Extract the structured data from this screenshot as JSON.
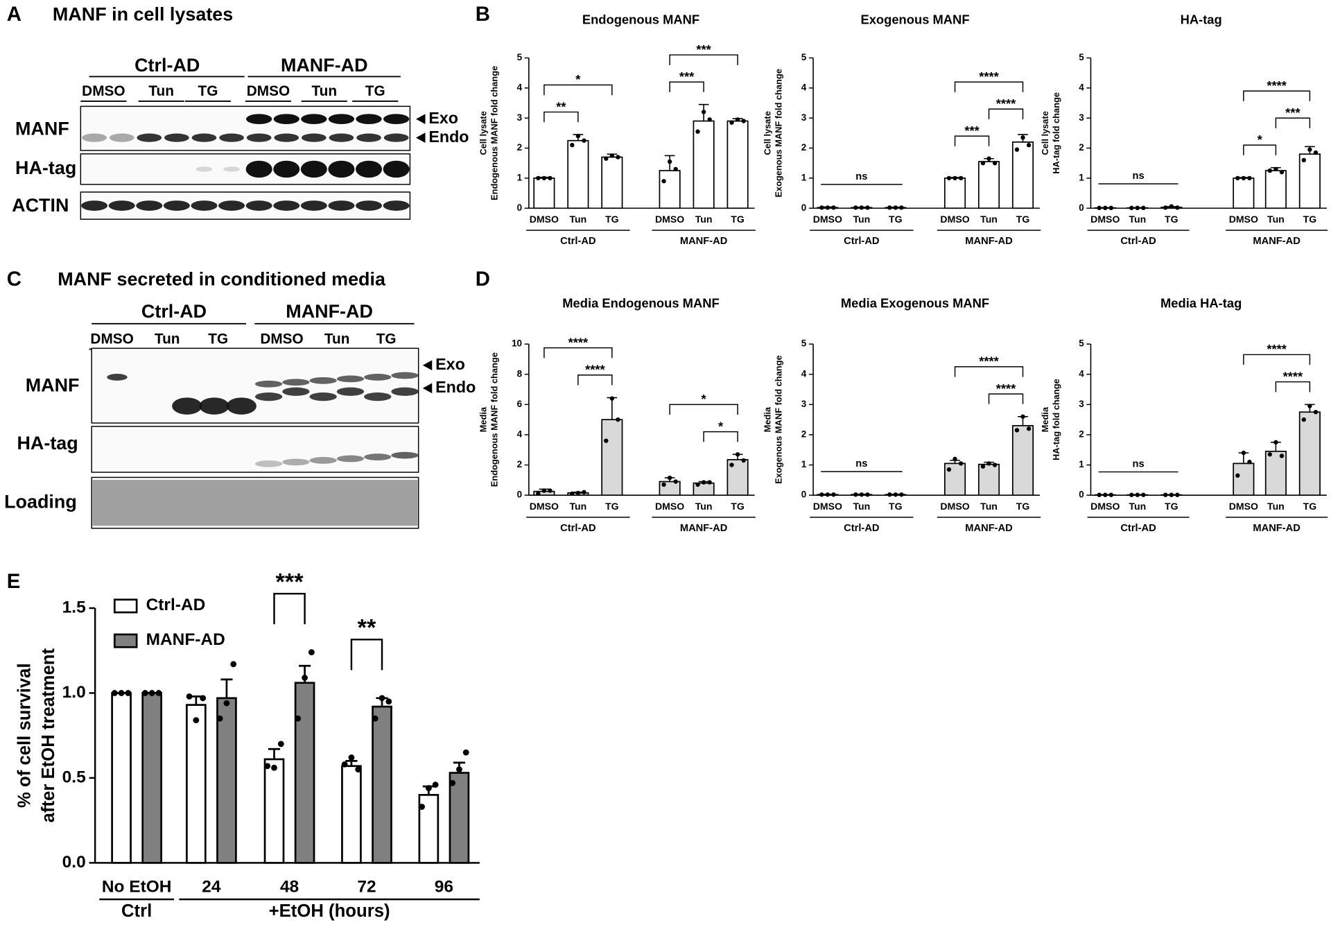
{
  "blots": [
    {
      "panel": "A",
      "title": "MANF in cell lysates",
      "groups": [
        "Ctrl-AD",
        "MANF-AD"
      ],
      "lanes": [
        "DMSO",
        "Tun",
        "TG",
        "DMSO",
        "Tun",
        "TG"
      ],
      "rows": [
        "MANF",
        "HA-tag",
        "ACTIN"
      ],
      "bands": [
        "Exo",
        "Endo"
      ]
    },
    {
      "panel": "C",
      "title": "MANF secreted in conditioned media",
      "groups": [
        "Ctrl-AD",
        "MANF-AD"
      ],
      "lanes": [
        "DMSO",
        "Tun",
        "TG",
        "DMSO",
        "Tun",
        "TG"
      ],
      "rows": [
        "MANF",
        "HA-tag",
        "Loading"
      ],
      "bands": [
        "Exo",
        "Endo"
      ]
    }
  ],
  "chart_panels": [
    "B",
    "D",
    "E"
  ],
  "chart_data": [
    {
      "type": "bar",
      "title": "Endogenous MANF",
      "ylabel": [
        "Cell lysate",
        "Endogenous MANF fold change"
      ],
      "categories": [
        "DMSO",
        "Tun",
        "TG",
        "DMSO",
        "Tun",
        "TG"
      ],
      "groups": [
        "Ctrl-AD",
        "MANF-AD"
      ],
      "values": [
        1.0,
        2.25,
        1.7,
        1.25,
        2.9,
        2.9
      ],
      "errors": [
        0.03,
        0.2,
        0.1,
        0.5,
        0.55,
        0.08
      ],
      "points": [
        [
          1,
          1,
          1
        ],
        [
          2.1,
          2.4,
          2.25
        ],
        [
          1.65,
          1.75,
          1.7
        ],
        [
          0.9,
          1.55,
          1.3
        ],
        [
          2.55,
          3.2,
          2.95
        ],
        [
          2.85,
          2.95,
          2.9
        ]
      ],
      "color": "#ffffff",
      "ylim": [
        0,
        5
      ],
      "yticks": [
        0,
        1,
        2,
        3,
        4,
        5
      ],
      "significance": [
        {
          "from": 0,
          "to": 1,
          "label": "**"
        },
        {
          "from": 0,
          "to": 2,
          "label": "*"
        },
        {
          "from": 3,
          "to": 4,
          "label": "***"
        },
        {
          "from": 3,
          "to": 5,
          "label": "***"
        }
      ]
    },
    {
      "type": "bar",
      "title": "Exogenous MANF",
      "ylabel": [
        "Cell lysate",
        "Exogenous MANF fold change"
      ],
      "categories": [
        "DMSO",
        "Tun",
        "TG",
        "DMSO",
        "Tun",
        "TG"
      ],
      "groups": [
        "Ctrl-AD",
        "MANF-AD"
      ],
      "values": [
        0.02,
        0.02,
        0.02,
        1.0,
        1.55,
        2.2
      ],
      "errors": [
        0.02,
        0.01,
        0.01,
        0.02,
        0.1,
        0.25
      ],
      "points": [
        [
          0.02,
          0.02,
          0.02
        ],
        [
          0.02,
          0.02,
          0.02
        ],
        [
          0.02,
          0.02,
          0.02
        ],
        [
          1,
          1,
          1
        ],
        [
          1.5,
          1.65,
          1.5
        ],
        [
          1.95,
          2.35,
          2.1
        ]
      ],
      "color": "#ffffff",
      "ylim": [
        0,
        5
      ],
      "yticks": [
        0,
        1,
        2,
        3,
        4,
        5
      ],
      "significance": [
        {
          "from": 0,
          "to": 2,
          "label": "ns"
        },
        {
          "from": 3,
          "to": 4,
          "label": "***"
        },
        {
          "from": 4,
          "to": 5,
          "label": "****"
        },
        {
          "from": 3,
          "to": 5,
          "label": "****"
        }
      ]
    },
    {
      "type": "bar",
      "title": "HA-tag",
      "ylabel": [
        "Cell lysate",
        "HA-tag fold change"
      ],
      "categories": [
        "DMSO",
        "Tun",
        "TG",
        "DMSO",
        "Tun",
        "TG"
      ],
      "groups": [
        "Ctrl-AD",
        "MANF-AD"
      ],
      "values": [
        0.01,
        0.01,
        0.03,
        1.0,
        1.25,
        1.8
      ],
      "errors": [
        0.01,
        0.01,
        0.02,
        0.02,
        0.1,
        0.25
      ],
      "points": [
        [
          0.01,
          0.01,
          0.01
        ],
        [
          0.01,
          0.01,
          0.01
        ],
        [
          0.02,
          0.06,
          0.02
        ],
        [
          1,
          1,
          1
        ],
        [
          1.25,
          1.3,
          1.2
        ],
        [
          1.6,
          1.95,
          1.85
        ]
      ],
      "color": "#ffffff",
      "ylim": [
        0,
        5
      ],
      "yticks": [
        0,
        1,
        2,
        3,
        4,
        5
      ],
      "significance": [
        {
          "from": 0,
          "to": 2,
          "label": "ns"
        },
        {
          "from": 3,
          "to": 4,
          "label": "*"
        },
        {
          "from": 4,
          "to": 5,
          "label": "***"
        },
        {
          "from": 3,
          "to": 5,
          "label": "****"
        }
      ]
    },
    {
      "type": "bar",
      "title": "Media Endogenous MANF",
      "ylabel": [
        "Media",
        "Endogenous MANF fold change"
      ],
      "categories": [
        "DMSO",
        "Tun",
        "TG",
        "DMSO",
        "Tun",
        "TG"
      ],
      "groups": [
        "Ctrl-AD",
        "MANF-AD"
      ],
      "values": [
        0.25,
        0.15,
        5.0,
        0.9,
        0.8,
        2.35
      ],
      "errors": [
        0.15,
        0.05,
        1.45,
        0.25,
        0.1,
        0.35
      ],
      "points": [
        [
          0.1,
          0.3,
          0.3
        ],
        [
          0.1,
          0.15,
          0.2
        ],
        [
          3.6,
          6.4,
          5.0
        ],
        [
          0.7,
          1.15,
          0.9
        ],
        [
          0.7,
          0.85,
          0.85
        ],
        [
          2.0,
          2.7,
          2.3
        ]
      ],
      "color": "#d9d9d9",
      "ylim": [
        0,
        10
      ],
      "yticks": [
        0,
        2,
        4,
        6,
        8,
        10
      ],
      "significance": [
        {
          "from": 1,
          "to": 2,
          "label": "****"
        },
        {
          "from": 0,
          "to": 2,
          "label": "****"
        },
        {
          "from": 4,
          "to": 5,
          "label": "*"
        },
        {
          "from": 3,
          "to": 5,
          "label": "*"
        }
      ]
    },
    {
      "type": "bar",
      "title": "Media Exogenous MANF",
      "ylabel": [
        "Media",
        "Exogenous MANF fold change"
      ],
      "categories": [
        "DMSO",
        "Tun",
        "TG",
        "DMSO",
        "Tun",
        "TG"
      ],
      "groups": [
        "Ctrl-AD",
        "MANF-AD"
      ],
      "values": [
        0.02,
        0.02,
        0.02,
        1.05,
        1.02,
        2.3
      ],
      "errors": [
        0.01,
        0.01,
        0.01,
        0.1,
        0.07,
        0.3
      ],
      "points": [
        [
          0.02,
          0.02,
          0.02
        ],
        [
          0.02,
          0.02,
          0.02
        ],
        [
          0.02,
          0.02,
          0.02
        ],
        [
          0.85,
          1.2,
          1.05
        ],
        [
          0.95,
          1.05,
          1.0
        ],
        [
          2.15,
          2.6,
          2.2
        ]
      ],
      "color": "#d9d9d9",
      "ylim": [
        0,
        5
      ],
      "yticks": [
        0,
        1,
        2,
        3,
        4,
        5
      ],
      "significance": [
        {
          "from": 0,
          "to": 2,
          "label": "ns"
        },
        {
          "from": 4,
          "to": 5,
          "label": "****"
        },
        {
          "from": 3,
          "to": 5,
          "label": "****"
        }
      ]
    },
    {
      "type": "bar",
      "title": "Media HA-tag",
      "ylabel": [
        "Media",
        "HA-tag fold change"
      ],
      "categories": [
        "DMSO",
        "Tun",
        "TG",
        "DMSO",
        "Tun",
        "TG"
      ],
      "groups": [
        "Ctrl-AD",
        "MANF-AD"
      ],
      "values": [
        0.01,
        0.01,
        0.01,
        1.05,
        1.45,
        2.75
      ],
      "errors": [
        0.01,
        0.01,
        0.01,
        0.35,
        0.3,
        0.25
      ],
      "points": [
        [
          0.01,
          0.01,
          0.01
        ],
        [
          0.01,
          0.01,
          0.01
        ],
        [
          0.01,
          0.01,
          0.01
        ],
        [
          0.65,
          1.4,
          1.1
        ],
        [
          1.35,
          1.75,
          1.3
        ],
        [
          2.5,
          2.95,
          2.75
        ]
      ],
      "color": "#d9d9d9",
      "ylim": [
        0,
        5
      ],
      "yticks": [
        0,
        1,
        2,
        3,
        4,
        5
      ],
      "significance": [
        {
          "from": 0,
          "to": 2,
          "label": "ns"
        },
        {
          "from": 4,
          "to": 5,
          "label": "****"
        },
        {
          "from": 3,
          "to": 5,
          "label": "****"
        }
      ]
    },
    {
      "type": "bar",
      "ylabel": [
        "% of cell survival",
        "after EtOH treatment"
      ],
      "categories": [
        "No EtOH",
        "24",
        "48",
        "72",
        "96"
      ],
      "groups": [
        "Ctrl",
        "+EtOH (hours)"
      ],
      "series": [
        {
          "name": "Ctrl-AD",
          "color": "#ffffff",
          "values": [
            1.0,
            0.93,
            0.61,
            0.57,
            0.4
          ],
          "errors": [
            0,
            0.05,
            0.06,
            0.03,
            0.05
          ],
          "points": [
            [
              1,
              1,
              1
            ],
            [
              0.98,
              0.84,
              0.97
            ],
            [
              0.57,
              0.56,
              0.7
            ],
            [
              0.58,
              0.62,
              0.55
            ],
            [
              0.33,
              0.44,
              0.46
            ]
          ]
        },
        {
          "name": "MANF-AD",
          "color": "#808080",
          "values": [
            1.0,
            0.97,
            1.06,
            0.92,
            0.53
          ],
          "errors": [
            0,
            0.11,
            0.1,
            0.05,
            0.06
          ],
          "points": [
            [
              1,
              1,
              1
            ],
            [
              0.85,
              0.94,
              1.17
            ],
            [
              0.85,
              1.09,
              1.24
            ],
            [
              0.85,
              0.97,
              0.95
            ],
            [
              0.47,
              0.55,
              0.65
            ]
          ]
        }
      ],
      "ylim": [
        0,
        1.5
      ],
      "yticks": [
        {
          "value": 0,
          "label": "0.0"
        },
        0.5,
        {
          "value": 1,
          "label": "1.0"
        },
        {
          "value": 1.5,
          "label": "1.5"
        }
      ],
      "legend": "top-left",
      "significance": [
        {
          "category": 2,
          "label": "***"
        },
        {
          "category": 3,
          "label": "**"
        }
      ]
    }
  ]
}
